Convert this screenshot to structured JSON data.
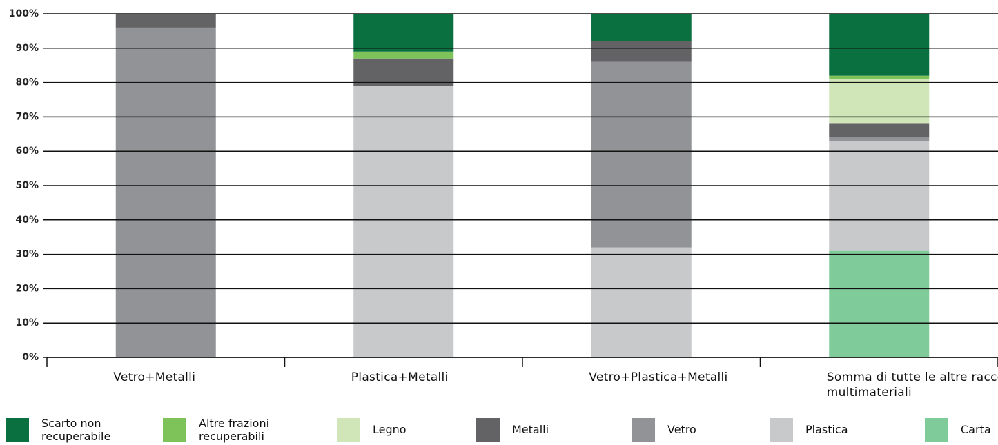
{
  "chart_data": {
    "type": "stacked_bar",
    "categories": [
      "Vetro+Metalli",
      "Plastica+Metalli",
      "Vetro+Plastica+Metalli",
      "Somma di tutte le altre raccolte multimateriali"
    ],
    "series": [
      {
        "name": "Scarto non recuperabile",
        "color": "#0b7040",
        "values": [
          0,
          11,
          8,
          18
        ]
      },
      {
        "name": "Altre frazioni recuperabili",
        "color": "#7dc35a",
        "values": [
          0,
          2,
          0,
          1
        ]
      },
      {
        "name": "Legno",
        "color": "#d0e6b8",
        "values": [
          0,
          0,
          0,
          13
        ]
      },
      {
        "name": "Metalli",
        "color": "#636365",
        "values": [
          4,
          8,
          6,
          4
        ]
      },
      {
        "name": "Vetro",
        "color": "#929397",
        "values": [
          96,
          0,
          54,
          1
        ]
      },
      {
        "name": "Plastica",
        "color": "#c8c9cb",
        "values": [
          0,
          79,
          32,
          32
        ]
      },
      {
        "name": "Carta",
        "color": "#80cb9a",
        "values": [
          0,
          0,
          0,
          31
        ]
      }
    ],
    "ylim": [
      0,
      100
    ],
    "yticks": [
      {
        "value": 0,
        "label": "0%"
      },
      {
        "value": 10,
        "label": "10%"
      },
      {
        "value": 20,
        "label": "20%"
      },
      {
        "value": 30,
        "label": "30%"
      },
      {
        "value": 40,
        "label": "40%"
      },
      {
        "value": 50,
        "label": "50%"
      },
      {
        "value": 60,
        "label": "60%"
      },
      {
        "value": 70,
        "label": "70%"
      },
      {
        "value": 80,
        "label": "80%"
      },
      {
        "value": 90,
        "label": "90%"
      },
      {
        "value": 100,
        "label": "100%"
      }
    ],
    "grid": true
  }
}
